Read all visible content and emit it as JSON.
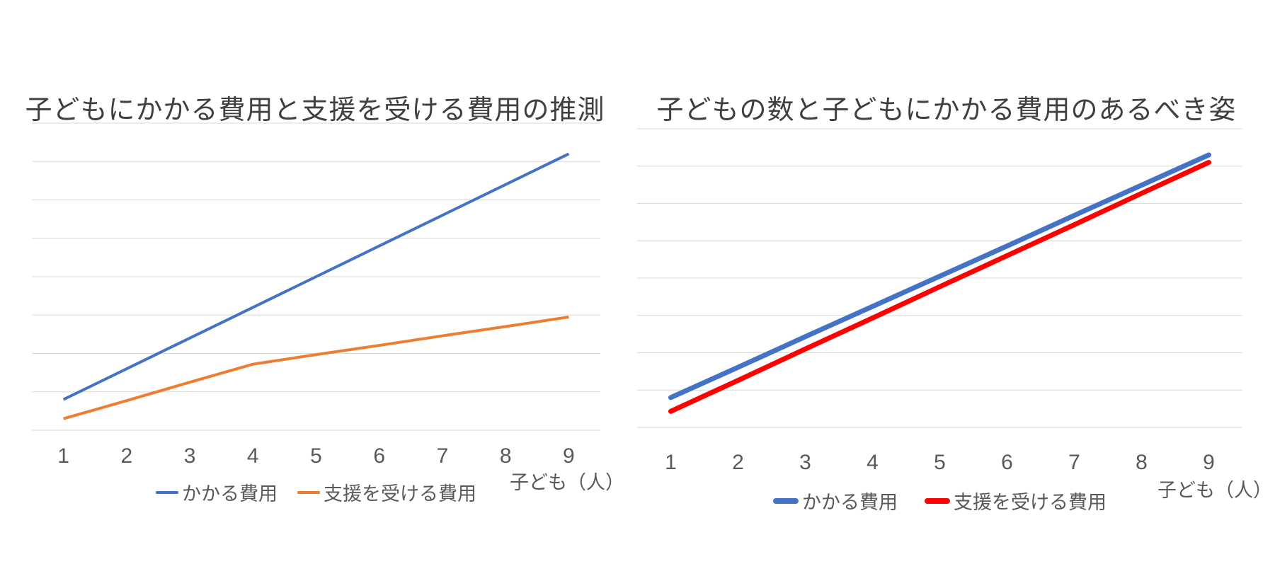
{
  "page": {
    "background": "#ffffff"
  },
  "chart_data": [
    {
      "type": "line",
      "title": "子どもにかかる費用と支援を受ける費用の推測",
      "xlabel": "子ども（人）",
      "categories": [
        "1",
        "2",
        "3",
        "4",
        "5",
        "6",
        "7",
        "8",
        "9"
      ],
      "series": [
        {
          "name": "かかる費用",
          "color": "#4472C4",
          "values": [
            0.8,
            1.6,
            2.4,
            3.2,
            4.0,
            4.8,
            5.6,
            6.4,
            7.2
          ]
        },
        {
          "name": "支援を受ける費用",
          "color": "#ED7D31",
          "values": [
            0.3,
            0.77,
            1.25,
            1.72,
            1.97,
            2.21,
            2.46,
            2.7,
            2.95
          ]
        }
      ],
      "ylim": [
        0,
        8
      ],
      "y_axis_labels_visible": false,
      "grid": true,
      "gridline_count": 9,
      "gridline_color": "#D9D9D9",
      "legend_position": "bottom",
      "axis_text_color": "#595959",
      "title_color": "#3F3F3F"
    },
    {
      "type": "line",
      "title": "子どもの数と子どもにかかる費用のあるべき姿",
      "xlabel": "子ども（人）",
      "categories": [
        "1",
        "2",
        "3",
        "4",
        "5",
        "6",
        "7",
        "8",
        "9"
      ],
      "series": [
        {
          "name": "かかる費用",
          "color": "#4472C4",
          "values": [
            0.8,
            1.61,
            2.43,
            3.24,
            4.05,
            4.86,
            5.68,
            6.49,
            7.3
          ]
        },
        {
          "name": "支援を受ける費用",
          "color": "#FF0000",
          "values": [
            0.43,
            1.26,
            2.1,
            2.93,
            3.77,
            4.6,
            5.43,
            6.27,
            7.1
          ]
        }
      ],
      "ylim": [
        0,
        8
      ],
      "y_axis_labels_visible": false,
      "grid": true,
      "gridline_count": 9,
      "gridline_color": "#D9D9D9",
      "legend_position": "bottom",
      "axis_text_color": "#595959",
      "title_color": "#3F3F3F"
    }
  ]
}
